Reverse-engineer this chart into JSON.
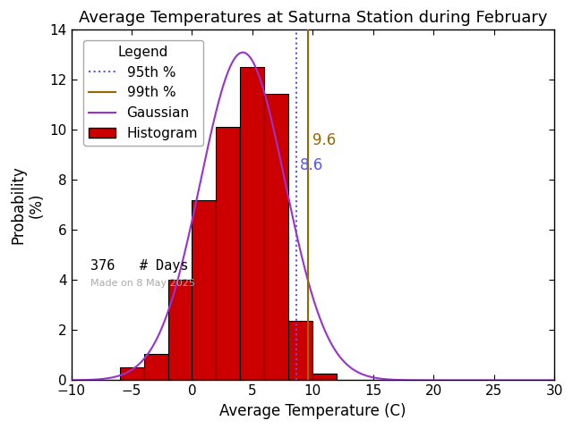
{
  "title": "Average Temperatures at Saturna Station during February",
  "xlabel": "Average Temperature (C)",
  "ylabel": "Probability\n(%)",
  "xlim": [
    -10,
    30
  ],
  "ylim": [
    0,
    14
  ],
  "xticks": [
    -10,
    -5,
    0,
    5,
    10,
    15,
    20,
    25,
    30
  ],
  "yticks": [
    0,
    2,
    4,
    6,
    8,
    10,
    12,
    14
  ],
  "bin_edges": [
    -6,
    -4,
    -2,
    0,
    2,
    4,
    6,
    8,
    10,
    12
  ],
  "bin_heights": [
    0.53,
    1.06,
    4.01,
    7.18,
    10.11,
    12.5,
    11.44,
    2.39,
    0.27,
    0.0
  ],
  "gauss_mean": 4.2,
  "gauss_std": 3.5,
  "gauss_amplitude": 13.1,
  "percentile_95": 8.6,
  "percentile_99": 9.6,
  "n_days": 376,
  "watermark": "Made on 8 May 2025",
  "bar_color": "#cc0000",
  "bar_edge_color": "#000000",
  "gauss_color": "#9933cc",
  "p95_color": "#5555ff",
  "p99_color": "#996600",
  "background_color": "#ffffff",
  "title_fontsize": 13,
  "axis_fontsize": 12,
  "tick_fontsize": 11,
  "legend_fontsize": 11
}
